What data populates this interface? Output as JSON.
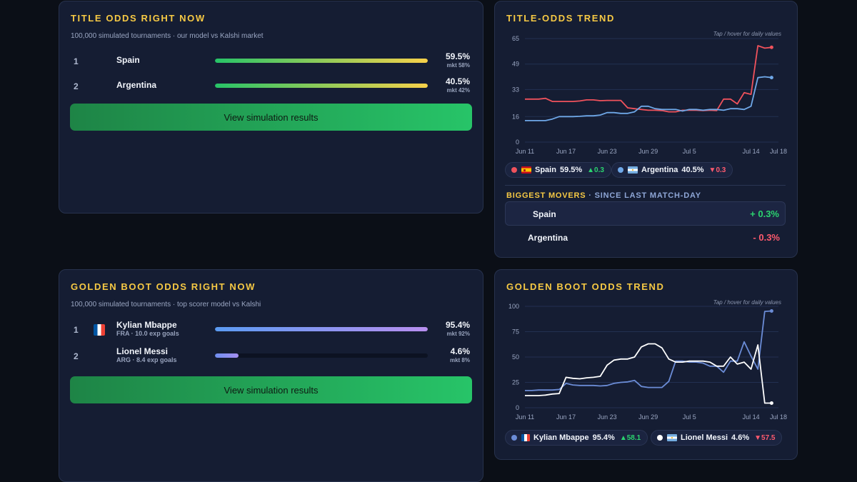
{
  "title_panel": {
    "title": "TITLE ODDS RIGHT NOW",
    "subtitle": "100,000 simulated tournaments · our model vs Kalshi market",
    "rows": [
      {
        "rank": "1",
        "name": "Spain",
        "pct": "59.5%",
        "mkt": "mkt 58%",
        "share": 0.595
      },
      {
        "rank": "2",
        "name": "Argentina",
        "pct": "40.5%",
        "mkt": "mkt 42%",
        "share": 0.405
      }
    ],
    "button": "View simulation results"
  },
  "boot_panel": {
    "title": "GOLDEN BOOT ODDS RIGHT NOW",
    "subtitle": "100,000 simulated tournaments · top scorer model vs Kalshi",
    "rows": [
      {
        "rank": "1",
        "name": "Kylian Mbappe",
        "sub": "FRA · 10.0 exp goals",
        "pct": "95.4%",
        "mkt": "mkt 92%",
        "share": 0.954
      },
      {
        "rank": "2",
        "name": "Lionel Messi",
        "sub": "ARG · 8.4 exp goals",
        "pct": "4.6%",
        "mkt": "mkt 8%",
        "share": 0.046
      }
    ],
    "button": "View simulation results"
  },
  "title_trend": {
    "title": "TITLE-ODDS TREND",
    "hint": "Tap / hover for daily values",
    "legend": [
      {
        "name": "Spain",
        "value": "59.5%",
        "change": "▲0.3",
        "dir": "up",
        "color": "#f0525c"
      },
      {
        "name": "Argentina",
        "value": "40.5%",
        "change": "▼0.3",
        "dir": "down",
        "color": "#6fa8e8"
      }
    ],
    "movers_title": "BIGGEST MOVERS",
    "movers_sep": " · ",
    "movers_sub": "SINCE LAST MATCH-DAY",
    "movers": [
      {
        "name": "Spain",
        "value": "+ 0.3%",
        "dir": "up"
      },
      {
        "name": "Argentina",
        "value": "- 0.3%",
        "dir": "down"
      }
    ]
  },
  "boot_trend": {
    "title": "GOLDEN BOOT ODDS TREND",
    "hint": "Tap / hover for daily values",
    "legend": [
      {
        "name": "Kylian Mbappe",
        "value": "95.4%",
        "change": "▲58.1",
        "dir": "up",
        "color": "#6b8cd6"
      },
      {
        "name": "Lionel Messi",
        "value": "4.6%",
        "change": "▼57.5",
        "dir": "down",
        "color": "#ffffff"
      }
    ]
  },
  "colors": {
    "accent": "#f6c944",
    "spain": "#f0525c",
    "argentina": "#6fa8e8",
    "mbappe": "#6b8cd6",
    "messi": "#ffffff",
    "up": "#2bd46f",
    "down": "#ff5a6e"
  },
  "chart_data": [
    {
      "type": "line",
      "title": "TITLE-ODDS TREND",
      "ylim": [
        0,
        65
      ],
      "yticks": [
        0,
        16,
        33,
        49,
        65
      ],
      "xticks": [
        "Jun 11",
        "Jun 17",
        "Jun 23",
        "Jun 29",
        "Jul 5",
        "Jul 14",
        "Jul 18"
      ],
      "x_days": [
        0,
        6,
        12,
        18,
        24,
        33,
        37
      ],
      "grid": true,
      "series": [
        {
          "name": "Spain",
          "color": "#f0525c",
          "x": [
            0,
            1,
            2,
            3,
            4,
            5,
            6,
            7,
            8,
            9,
            10,
            11,
            12,
            13,
            14,
            15,
            16,
            17,
            18,
            19,
            20,
            21,
            22,
            23,
            24,
            25,
            26,
            27,
            28,
            29,
            30,
            31,
            32,
            33,
            34,
            35,
            36
          ],
          "values": [
            27,
            27,
            27,
            27.5,
            25.5,
            25.5,
            25.5,
            25.5,
            25.8,
            26.5,
            26.5,
            26,
            26.2,
            26.2,
            26.2,
            21.5,
            21,
            20.5,
            20,
            20,
            19.8,
            19,
            19,
            20,
            20,
            20,
            19.8,
            20,
            19.8,
            27,
            27,
            24,
            31,
            30,
            60.5,
            59,
            59.5
          ]
        },
        {
          "name": "Argentina",
          "color": "#6fa8e8",
          "x": [
            0,
            1,
            2,
            3,
            4,
            5,
            6,
            7,
            8,
            9,
            10,
            11,
            12,
            13,
            14,
            15,
            16,
            17,
            18,
            19,
            20,
            21,
            22,
            23,
            24,
            25,
            26,
            27,
            28,
            29,
            30,
            31,
            32,
            33,
            34,
            35,
            36
          ],
          "values": [
            13.5,
            13.5,
            13.5,
            13.5,
            14.5,
            16,
            16,
            16,
            16.2,
            16.5,
            16.5,
            17,
            18.5,
            18.5,
            18,
            18,
            19,
            22.5,
            22.5,
            21,
            20.5,
            20.5,
            20.5,
            19.5,
            20.5,
            20.5,
            20,
            20.5,
            20.5,
            20,
            21,
            21,
            20.5,
            22.5,
            40.5,
            41,
            40.5
          ]
        }
      ]
    },
    {
      "type": "line",
      "title": "GOLDEN BOOT ODDS TREND",
      "ylim": [
        0,
        100
      ],
      "yticks": [
        0,
        25,
        50,
        75,
        100
      ],
      "xticks": [
        "Jun 11",
        "Jun 17",
        "Jun 23",
        "Jun 29",
        "Jul 5",
        "Jul 14",
        "Jul 18"
      ],
      "x_days": [
        0,
        6,
        12,
        18,
        24,
        33,
        37
      ],
      "grid": true,
      "series": [
        {
          "name": "Kylian Mbappe",
          "color": "#6b8cd6",
          "x": [
            0,
            1,
            2,
            3,
            4,
            5,
            6,
            7,
            8,
            9,
            10,
            11,
            12,
            13,
            14,
            15,
            16,
            17,
            18,
            19,
            20,
            21,
            22,
            23,
            24,
            25,
            26,
            27,
            28,
            29,
            30,
            31,
            32,
            33,
            34,
            35,
            36
          ],
          "values": [
            17,
            17,
            17.5,
            17.5,
            17.5,
            18,
            24,
            22.5,
            22,
            22,
            22,
            21.5,
            22,
            24,
            25,
            25.5,
            27,
            21,
            20,
            20,
            20,
            26,
            46,
            46,
            45,
            45,
            44,
            41,
            41,
            35,
            46,
            46,
            65,
            51,
            38,
            95,
            95.4
          ]
        },
        {
          "name": "Lionel Messi",
          "color": "#ffffff",
          "x": [
            0,
            1,
            2,
            3,
            4,
            5,
            6,
            7,
            8,
            9,
            10,
            11,
            12,
            13,
            14,
            15,
            16,
            17,
            18,
            19,
            20,
            21,
            22,
            23,
            24,
            25,
            26,
            27,
            28,
            29,
            30,
            31,
            32,
            33,
            34,
            35,
            36
          ],
          "values": [
            12,
            12,
            12,
            12.5,
            13.5,
            14,
            30,
            29,
            28.5,
            29.5,
            30,
            31,
            42,
            47,
            48,
            48,
            50,
            60,
            63,
            63,
            59,
            48,
            45,
            45,
            46,
            46,
            46,
            45,
            41,
            41,
            50,
            43,
            45,
            38,
            62,
            4.6,
            4.6
          ]
        }
      ]
    }
  ]
}
